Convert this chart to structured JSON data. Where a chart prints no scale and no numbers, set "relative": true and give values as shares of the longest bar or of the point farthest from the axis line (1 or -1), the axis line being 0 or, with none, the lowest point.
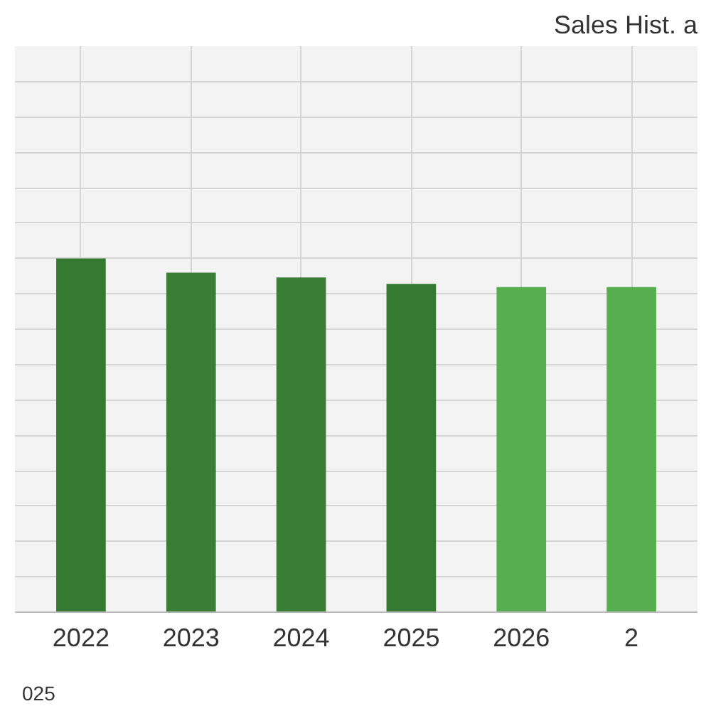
{
  "chart_data": {
    "type": "bar",
    "title": "Sales Hist. a",
    "relative": true,
    "categories": [
      "2022",
      "2023",
      "2024",
      "2025",
      "2026",
      "2"
    ],
    "values": [
      1,
      0.96,
      0.946,
      0.928,
      0.919,
      0.919
    ],
    "colors": [
      "#367a32",
      "#3a7d35",
      "#3a7d35",
      "#367a32",
      "#57ae4e",
      "#57ae4e"
    ],
    "grid": true,
    "annotations": [
      "025"
    ]
  }
}
